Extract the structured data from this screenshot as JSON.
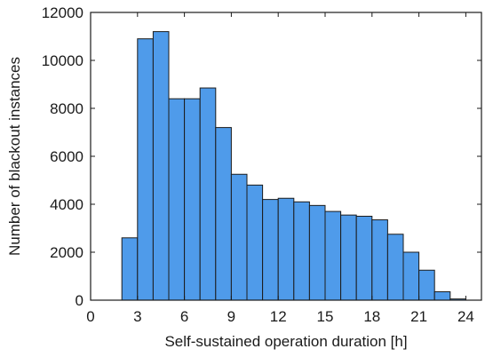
{
  "chart_data": {
    "type": "bar",
    "subtype": "histogram",
    "xlabel": "Self-sustained operation duration [h]",
    "ylabel": "Number of blackout instances",
    "xlim": [
      0,
      25
    ],
    "ylim": [
      0,
      12000
    ],
    "xticks": [
      0,
      3,
      6,
      9,
      12,
      15,
      18,
      21,
      24
    ],
    "yticks": [
      0,
      2000,
      4000,
      6000,
      8000,
      10000,
      12000
    ],
    "grid": false,
    "bin_width": 1,
    "bins": [
      {
        "start": 2,
        "value": 2600
      },
      {
        "start": 3,
        "value": 10900
      },
      {
        "start": 4,
        "value": 11200
      },
      {
        "start": 5,
        "value": 8400
      },
      {
        "start": 6,
        "value": 8400
      },
      {
        "start": 7,
        "value": 8850
      },
      {
        "start": 8,
        "value": 7200
      },
      {
        "start": 9,
        "value": 5250
      },
      {
        "start": 10,
        "value": 4800
      },
      {
        "start": 11,
        "value": 4200
      },
      {
        "start": 12,
        "value": 4250
      },
      {
        "start": 13,
        "value": 4100
      },
      {
        "start": 14,
        "value": 3950
      },
      {
        "start": 15,
        "value": 3700
      },
      {
        "start": 16,
        "value": 3550
      },
      {
        "start": 17,
        "value": 3500
      },
      {
        "start": 18,
        "value": 3350
      },
      {
        "start": 19,
        "value": 2750
      },
      {
        "start": 20,
        "value": 2000
      },
      {
        "start": 21,
        "value": 1250
      },
      {
        "start": 22,
        "value": 350
      },
      {
        "start": 23,
        "value": 50
      }
    ],
    "colors": {
      "bar_fill": "#4f9bea",
      "bar_edge": "#1c1c1c",
      "axis": "#1a1a1a"
    }
  }
}
